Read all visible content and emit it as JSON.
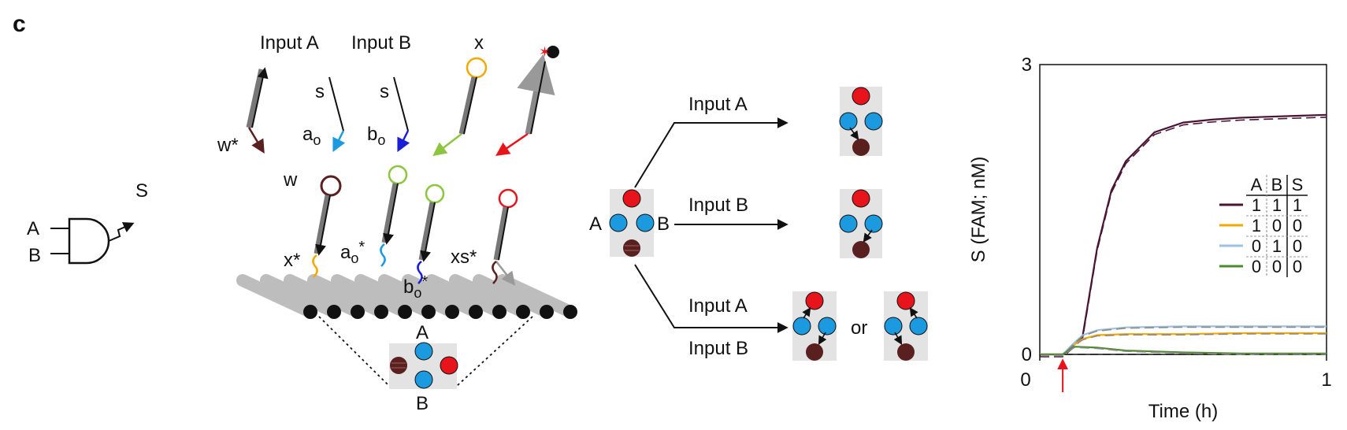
{
  "panel_label": "c",
  "gate": {
    "input_a": "A",
    "input_b": "B",
    "output": "S"
  },
  "strands": {
    "input_a_label": "Input A",
    "input_b_label": "Input B",
    "x_label": "x",
    "s_label_a": "s",
    "s_label_b": "s",
    "ao_sub": "o",
    "bo_sub": "o",
    "ao_letter": "a",
    "bo_letter": "b",
    "w_star": "w*",
    "w": "w",
    "x_star": "x*",
    "ao_star_letter": "a",
    "bo_star_letter": "b",
    "star": "*",
    "xs_star": "xs*"
  },
  "origami": {
    "pos_a": "A",
    "pos_b": "B"
  },
  "reactions": {
    "start_a": "A",
    "start_b": "B",
    "path1_label": "Input A",
    "path2_label": "Input B",
    "path3_label_top": "Input A",
    "path3_label_bottom": "Input B",
    "or_word": "or"
  },
  "colors": {
    "red": "#e8141b",
    "blue": "#1b9ae0",
    "brown": "#5a1f1f",
    "gray_panel": "#e3e3e3",
    "green": "#8cc63f",
    "yellow": "#f2a900",
    "dark_blue": "#1a1fd6"
  },
  "chart_data": {
    "type": "line",
    "xlabel": "Time (h)",
    "ylabel": "S (FAM; nM)",
    "xlim": [
      0,
      1
    ],
    "ylim": [
      0,
      3
    ],
    "xticks": [
      "0",
      "1"
    ],
    "yticks": [
      "0",
      "3"
    ],
    "input_marker_x": 0.08,
    "series": [
      {
        "color": "#4a1535",
        "x": [
          0,
          0.08,
          0.12,
          0.15,
          0.2,
          0.25,
          0.3,
          0.4,
          0.5,
          0.6,
          0.7,
          0.8,
          0.9,
          1.0
        ],
        "values": [
          0,
          0,
          0.1,
          0.2,
          1.1,
          1.7,
          2.0,
          2.3,
          2.4,
          2.43,
          2.45,
          2.46,
          2.47,
          2.48
        ]
      },
      {
        "color": "#f2a900",
        "x": [
          0,
          0.08,
          0.12,
          0.15,
          0.2,
          0.3,
          0.5,
          0.7,
          1.0
        ],
        "values": [
          0,
          0,
          0.1,
          0.16,
          0.2,
          0.21,
          0.21,
          0.22,
          0.22
        ]
      },
      {
        "color": "#9ec1e0",
        "x": [
          0,
          0.08,
          0.12,
          0.15,
          0.2,
          0.3,
          0.5,
          0.7,
          1.0
        ],
        "values": [
          0,
          0,
          0.12,
          0.2,
          0.25,
          0.28,
          0.29,
          0.29,
          0.29
        ]
      },
      {
        "color": "#4d8a2a",
        "x": [
          0,
          0.08,
          0.12,
          0.2,
          0.3,
          0.5,
          0.7,
          1.0
        ],
        "values": [
          0,
          0,
          0.08,
          0.07,
          0.04,
          0.02,
          0.01,
          0.01
        ]
      }
    ],
    "truth_table": {
      "headers": [
        "A",
        "B",
        "S"
      ],
      "rows": [
        {
          "color": "#4a1535",
          "cells": [
            "1",
            "1",
            "1"
          ]
        },
        {
          "color": "#f2a900",
          "cells": [
            "1",
            "0",
            "0"
          ]
        },
        {
          "color": "#9ec1e0",
          "cells": [
            "0",
            "1",
            "0"
          ]
        },
        {
          "color": "#4d8a2a",
          "cells": [
            "0",
            "0",
            "0"
          ]
        }
      ]
    }
  }
}
